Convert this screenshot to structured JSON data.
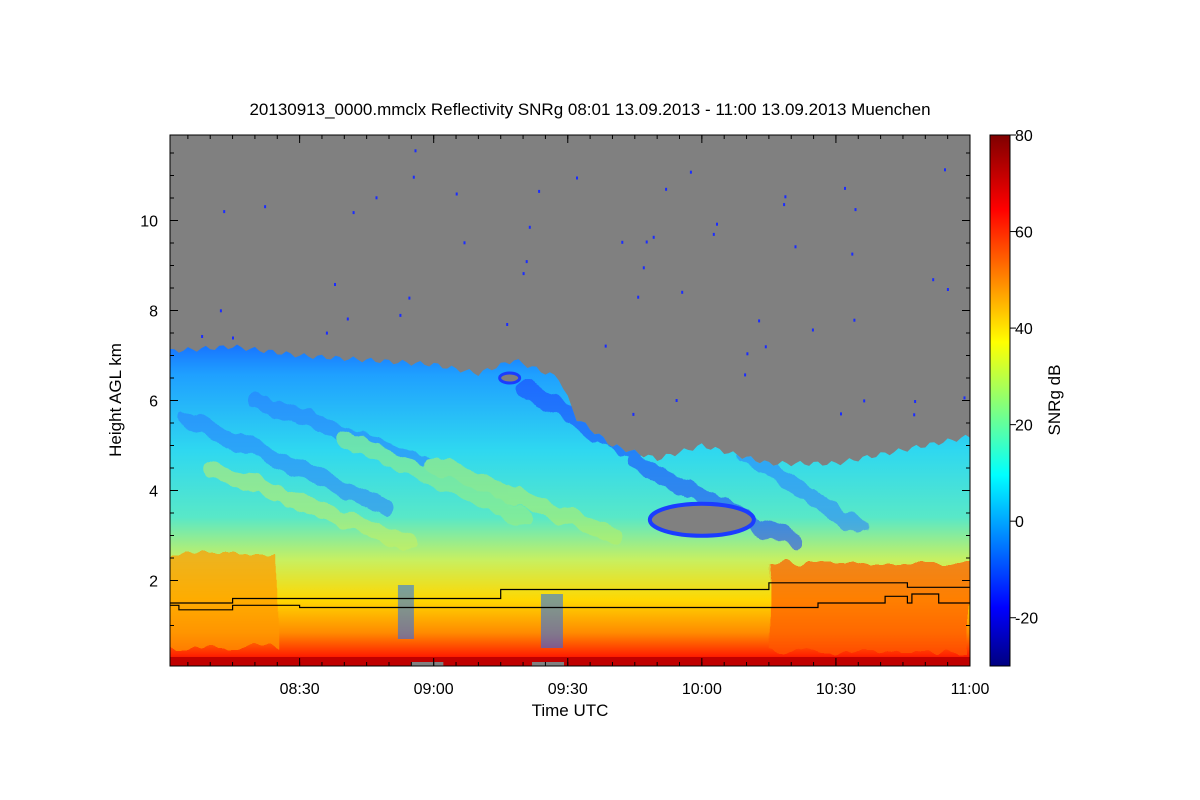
{
  "chart_data": {
    "type": "heatmap",
    "title": "20130913_0000.mmclx Reflectivity SNRg   08:01 13.09.2013 - 11:00 13.09.2013 Muenchen",
    "xlabel": "Time UTC",
    "ylabel": "Height AGL km",
    "xlim": [
      "08:01",
      "11:00"
    ],
    "ylim": [
      0.1,
      11.9
    ],
    "xticks": [
      "08:30",
      "09:00",
      "09:30",
      "10:00",
      "10:30",
      "11:00"
    ],
    "xtick_minutes": [
      29,
      59,
      89,
      119,
      149,
      179
    ],
    "yticks": [
      2,
      4,
      6,
      8,
      10
    ],
    "colorbar": {
      "label": "SNRg dB",
      "range": [
        -30,
        80
      ],
      "ticks": [
        -20,
        0,
        20,
        40,
        60,
        80
      ],
      "colormap": "jet"
    },
    "no_signal_color": "#808080",
    "cloud_top_height_km": [
      {
        "time": "08:01",
        "value": 7.1
      },
      {
        "time": "08:15",
        "value": 7.2
      },
      {
        "time": "08:30",
        "value": 7.0
      },
      {
        "time": "08:45",
        "value": 6.9
      },
      {
        "time": "09:00",
        "value": 6.8
      },
      {
        "time": "09:10",
        "value": 6.6
      },
      {
        "time": "09:18",
        "value": 6.9
      },
      {
        "time": "09:28",
        "value": 6.5
      },
      {
        "time": "09:32",
        "value": 5.6
      },
      {
        "time": "09:40",
        "value": 5.0
      },
      {
        "time": "09:50",
        "value": 4.7
      },
      {
        "time": "10:00",
        "value": 5.0
      },
      {
        "time": "10:15",
        "value": 4.6
      },
      {
        "time": "10:30",
        "value": 4.6
      },
      {
        "time": "10:45",
        "value": 4.9
      },
      {
        "time": "11:00",
        "value": 5.2
      }
    ],
    "series": [
      {
        "values": [
          {
            "time": "08:01",
            "value": 1.5
          },
          {
            "time": "08:15",
            "value": 1.6
          },
          {
            "time": "09:15",
            "value": 1.8
          },
          {
            "time": "10:15",
            "value": 1.95
          },
          {
            "time": "10:46",
            "value": 1.85
          },
          {
            "time": "11:00",
            "value": 1.85
          }
        ]
      },
      {
        "values": [
          {
            "time": "08:01",
            "value": 1.45
          },
          {
            "time": "08:03",
            "value": 1.35
          },
          {
            "time": "08:15",
            "value": 1.45
          },
          {
            "time": "08:30",
            "value": 1.4
          },
          {
            "time": "09:00",
            "value": 1.4
          },
          {
            "time": "10:25",
            "value": 1.4
          },
          {
            "time": "10:26",
            "value": 1.5
          },
          {
            "time": "10:40",
            "value": 1.5
          },
          {
            "time": "10:41",
            "value": 1.65
          },
          {
            "time": "10:46",
            "value": 1.5
          },
          {
            "time": "10:47",
            "value": 1.7
          },
          {
            "time": "10:53",
            "value": 1.5
          },
          {
            "time": "11:00",
            "value": 1.45
          }
        ]
      }
    ]
  }
}
